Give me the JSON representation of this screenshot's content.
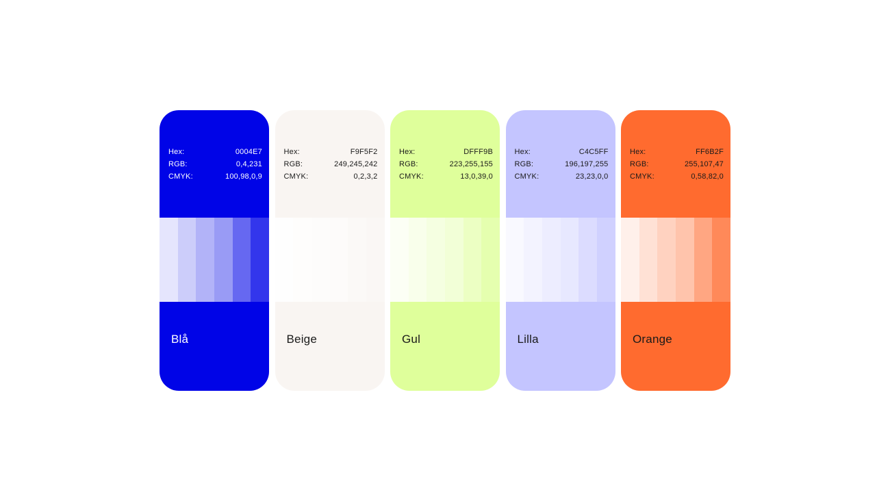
{
  "page": {
    "background": "#FFFFFF"
  },
  "labels": {
    "hex": "Hex:",
    "rgb": "RGB:",
    "cmyk": "CMYK:"
  },
  "tint_percentages": [
    10,
    20,
    30,
    40,
    60,
    80
  ],
  "cards": [
    {
      "name": "Blå",
      "hex_value": "0004E7",
      "rgb_value": "0,4,231",
      "cmyk_value": "100,98,0,9",
      "base_color": "#0004E7",
      "text_color": "#FFFFFF"
    },
    {
      "name": "Beige",
      "hex_value": "F9F5F2",
      "rgb_value": "249,245,242",
      "cmyk_value": "0,2,3,2",
      "base_color": "#F9F5F2",
      "text_color": "#1A1A1A"
    },
    {
      "name": "Gul",
      "hex_value": "DFFF9B",
      "rgb_value": "223,255,155",
      "cmyk_value": "13,0,39,0",
      "base_color": "#DFFF9B",
      "text_color": "#1A1A1A"
    },
    {
      "name": "Lilla",
      "hex_value": "C4C5FF",
      "rgb_value": "196,197,255",
      "cmyk_value": "23,23,0,0",
      "base_color": "#C4C5FF",
      "text_color": "#1A1A1A"
    },
    {
      "name": "Orange",
      "hex_value": "FF6B2F",
      "rgb_value": "255,107,47",
      "cmyk_value": "0,58,82,0",
      "base_color": "#FF6B2F",
      "text_color": "#1A1A1A"
    }
  ]
}
